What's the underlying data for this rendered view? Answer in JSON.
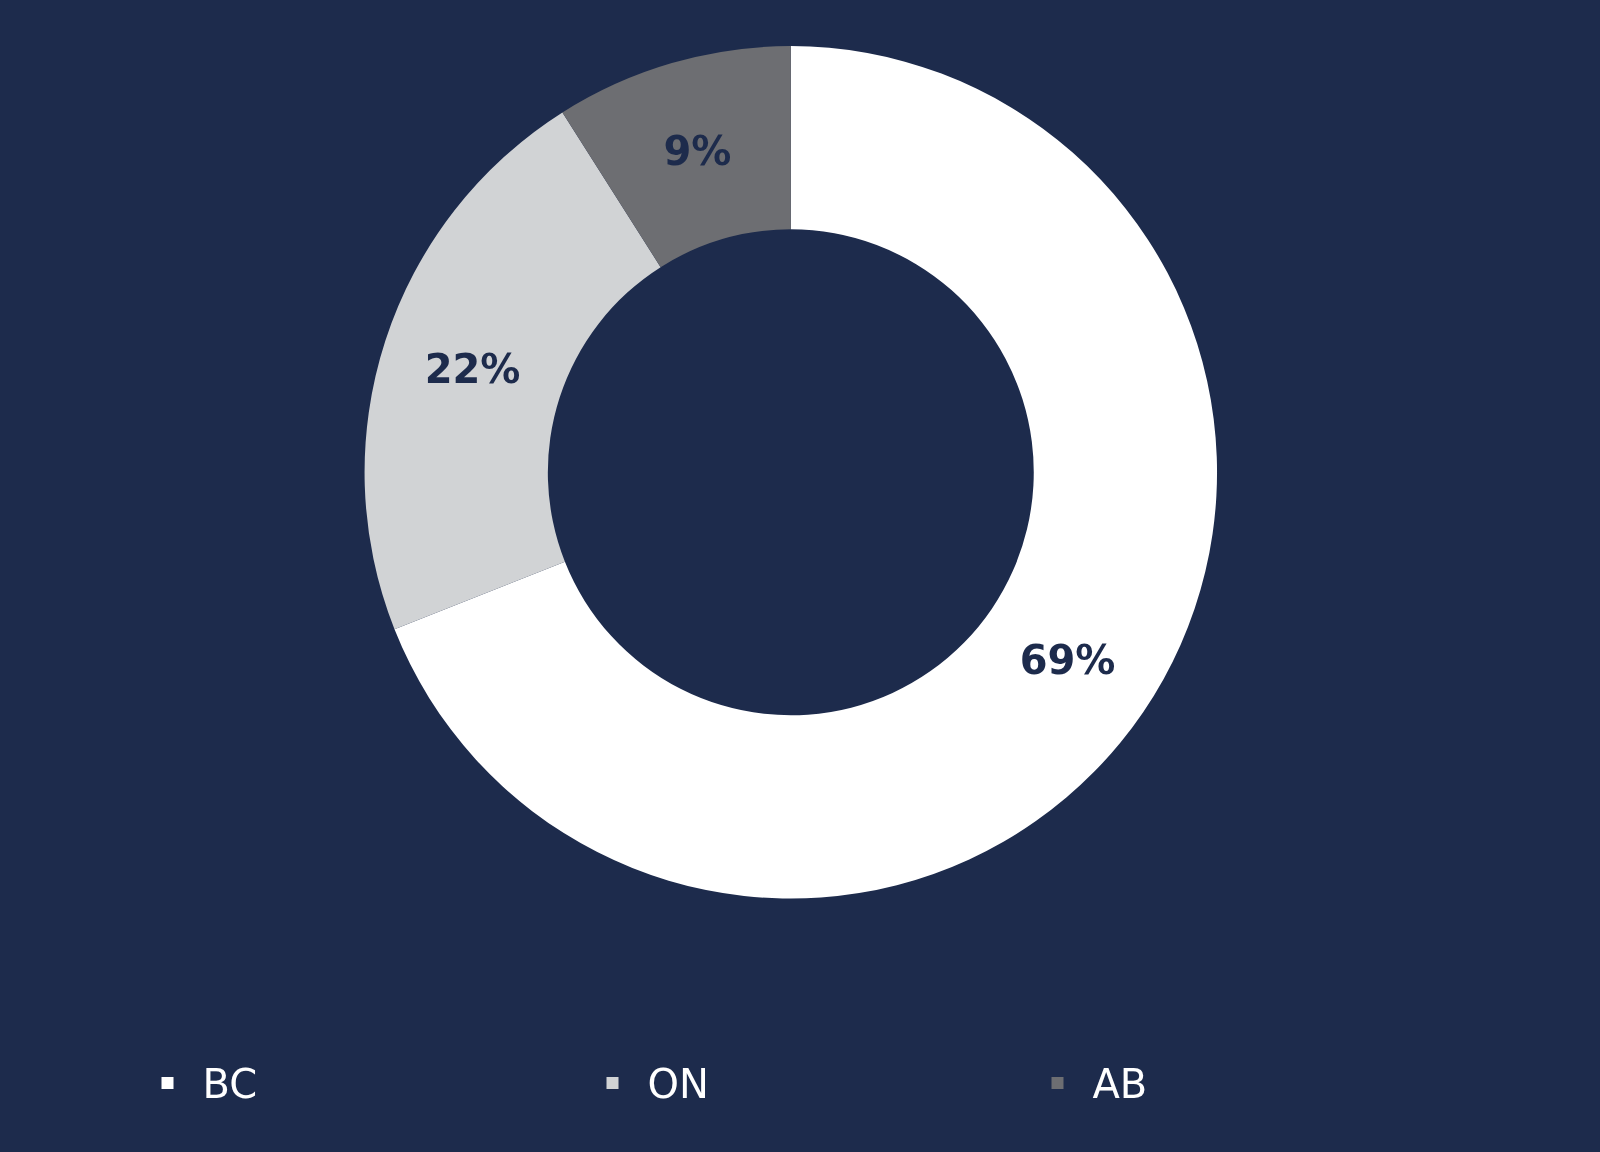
{
  "chart_data": {
    "type": "donut",
    "categories": [
      "BC",
      "ON",
      "AB"
    ],
    "values": [
      69,
      22,
      9
    ],
    "colors": [
      "#ffffff",
      "#d1d3d5",
      "#6d6e72"
    ],
    "value_labels": [
      "69%",
      "22%",
      "9%"
    ],
    "legend": "bottom"
  }
}
